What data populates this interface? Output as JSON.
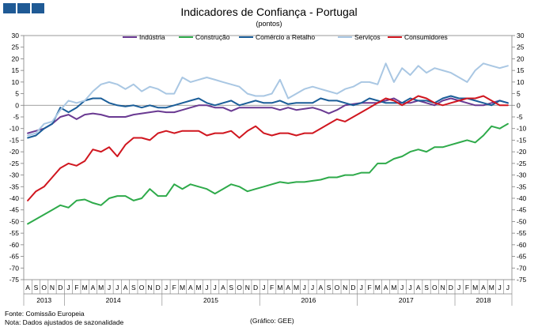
{
  "title": "Indicadores de Confiança - Portugal",
  "subtitle": "(pontos)",
  "footer": {
    "source": "Fonte: Comissão Europeia",
    "note": "Nota: Dados ajustados de sazonalidade",
    "credit": "(Gráfico: GEE)"
  },
  "logo_color": "#1f5a95",
  "chart_data": {
    "type": "line",
    "title": "Indicadores de Confiança - Portugal",
    "subtitle": "(pontos)",
    "ylim": [
      -75,
      30
    ],
    "ytick_step": 5,
    "grid": false,
    "legend_position": "top",
    "month_labels": [
      "A",
      "S",
      "O",
      "N",
      "D",
      "J",
      "F",
      "M",
      "A",
      "M",
      "J",
      "J",
      "A",
      "S",
      "O",
      "N",
      "D",
      "J",
      "F",
      "M",
      "A",
      "M",
      "J",
      "J",
      "A",
      "S",
      "O",
      "N",
      "D",
      "J",
      "F",
      "M",
      "A",
      "M",
      "J",
      "J",
      "A",
      "S",
      "O",
      "N",
      "D",
      "J",
      "F",
      "M",
      "A",
      "M",
      "J",
      "J",
      "A",
      "S",
      "O",
      "N",
      "D",
      "J",
      "F",
      "M",
      "A",
      "M",
      "J",
      "J"
    ],
    "year_groups": [
      {
        "label": "2013",
        "start": 0,
        "count": 5
      },
      {
        "label": "2014",
        "start": 5,
        "count": 12
      },
      {
        "label": "2015",
        "start": 17,
        "count": 12
      },
      {
        "label": "2016",
        "start": 29,
        "count": 12
      },
      {
        "label": "2017",
        "start": 41,
        "count": 12
      },
      {
        "label": "2018",
        "start": 53,
        "count": 7
      }
    ],
    "series": [
      {
        "name": "Indústria",
        "color": "#6a3a92",
        "values": [
          -12,
          -11,
          -10,
          -8,
          -5,
          -4,
          -6,
          -4,
          -3.5,
          -4,
          -5,
          -5,
          -5,
          -4,
          -3.5,
          -3,
          -2.5,
          -3,
          -3,
          -2,
          -1,
          0,
          0,
          -1,
          -1,
          -2.5,
          -1,
          -1,
          -1,
          -1,
          -1,
          -2,
          -1,
          -2,
          -1.5,
          -1,
          -2,
          -3.5,
          -2,
          0,
          0.5,
          1,
          1,
          1,
          2,
          3,
          1,
          1,
          2,
          1,
          0,
          2,
          3,
          2,
          1,
          0,
          0,
          1,
          2,
          1
        ]
      },
      {
        "name": "Construção",
        "color": "#2eaa4a",
        "values": [
          -51,
          -49,
          -47,
          -45,
          -43,
          -44,
          -41,
          -40.5,
          -42,
          -43,
          -40,
          -39,
          -39,
          -41,
          -40,
          -36,
          -39,
          -39,
          -34,
          -36,
          -34,
          -35,
          -36,
          -38,
          -36,
          -34,
          -35,
          -37,
          -36,
          -35,
          -34,
          -33,
          -33.5,
          -33,
          -33,
          -32.5,
          -32,
          -31,
          -31,
          -30,
          -30,
          -29,
          -29,
          -25,
          -25,
          -23,
          -22,
          -20,
          -19,
          -20,
          -18,
          -18,
          -17,
          -16,
          -15,
          -16,
          -13,
          -9,
          -10,
          -8
        ]
      },
      {
        "name": "Comércio a Retalho",
        "color": "#1a5d98",
        "values": [
          -14,
          -13,
          -10,
          -8,
          -1,
          -3,
          -1,
          2,
          3,
          3,
          1,
          0,
          -0.5,
          0,
          -1,
          0,
          -1,
          -1,
          0,
          1,
          2,
          3,
          1,
          0,
          1,
          2,
          0,
          1,
          2,
          1,
          1,
          2,
          0.5,
          1,
          1,
          1,
          3,
          2,
          2,
          1,
          0,
          1,
          3,
          2,
          1,
          1,
          1,
          3,
          2,
          2,
          1,
          3,
          4,
          3,
          3,
          2,
          1,
          0,
          2,
          1
        ]
      },
      {
        "name": "Serviços",
        "color": "#a9c7e3",
        "values": [
          -13,
          -12,
          -8,
          -7,
          -2,
          2,
          1,
          2,
          6,
          9,
          10,
          9,
          7,
          9,
          6,
          8,
          7,
          5,
          5,
          12,
          10,
          11,
          12,
          11,
          10,
          9,
          8,
          5,
          4,
          4,
          5,
          11,
          3,
          5,
          7,
          8,
          7,
          6,
          5,
          7,
          8,
          10,
          10,
          9,
          18,
          10,
          16,
          13,
          17,
          14,
          16,
          15,
          14,
          12,
          10,
          15,
          18,
          17,
          16,
          17
        ]
      },
      {
        "name": "Consumidores",
        "color": "#d0161f",
        "values": [
          -41,
          -37,
          -35,
          -31,
          -27,
          -25,
          -26,
          -24,
          -19,
          -20,
          -18,
          -22,
          -17,
          -14,
          -14,
          -15,
          -12,
          -11,
          -12,
          -11,
          -11,
          -11,
          -13,
          -12,
          -12,
          -11,
          -14,
          -11,
          -9,
          -12,
          -13,
          -12,
          -12,
          -13,
          -12,
          -12,
          -10,
          -8,
          -6,
          -7,
          -5,
          -3,
          -1,
          1,
          3,
          2,
          0,
          2,
          4,
          3,
          1,
          0,
          1,
          2,
          3,
          3,
          4,
          2,
          0,
          0
        ]
      }
    ]
  }
}
